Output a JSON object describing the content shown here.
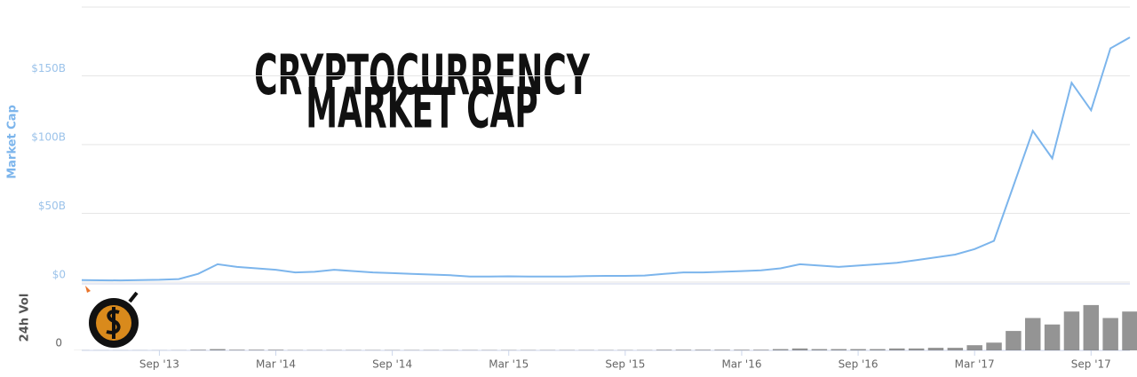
{
  "chart_data": {
    "type": "line",
    "title": [
      "CRYPTOCURRENCY",
      "MARKET CAP"
    ],
    "y_label": "Market Cap",
    "y2_label": "24h Vol",
    "x": [
      "2013-05",
      "2013-06",
      "2013-07",
      "2013-08",
      "2013-09",
      "2013-10",
      "2013-11",
      "2013-12",
      "2014-01",
      "2014-02",
      "2014-03",
      "2014-04",
      "2014-05",
      "2014-06",
      "2014-07",
      "2014-08",
      "2014-09",
      "2014-10",
      "2014-11",
      "2014-12",
      "2015-01",
      "2015-02",
      "2015-03",
      "2015-04",
      "2015-05",
      "2015-06",
      "2015-07",
      "2015-08",
      "2015-09",
      "2015-10",
      "2015-11",
      "2015-12",
      "2016-01",
      "2016-02",
      "2016-03",
      "2016-04",
      "2016-05",
      "2016-06",
      "2016-07",
      "2016-08",
      "2016-09",
      "2016-10",
      "2016-11",
      "2016-12",
      "2017-01",
      "2017-02",
      "2017-03",
      "2017-04",
      "2017-05",
      "2017-06",
      "2017-07",
      "2017-08",
      "2017-09",
      "2017-10",
      "2017-11"
    ],
    "series": [
      {
        "name": "Market Cap",
        "color": "#7cb5ec",
        "values": [
          1.5,
          1.3,
          1.2,
          1.5,
          1.7,
          2.2,
          6,
          13,
          11,
          10,
          9,
          7,
          7.5,
          9,
          8,
          7,
          6.5,
          6,
          5.5,
          5,
          4,
          4,
          4.2,
          4,
          4,
          4,
          4.3,
          4.5,
          4.5,
          4.8,
          6,
          7,
          7,
          7.5,
          8,
          8.5,
          10,
          13,
          12,
          11,
          12,
          13,
          14,
          16,
          18,
          20,
          24,
          30,
          70,
          110,
          90,
          145,
          125,
          170,
          178
        ]
      },
      {
        "name": "24h Vol",
        "color": "#666666",
        "axis": "y2",
        "values": [
          0.02,
          0.02,
          0.02,
          0.02,
          0.02,
          0.03,
          0.1,
          0.2,
          0.1,
          0.1,
          0.1,
          0.05,
          0.05,
          0.05,
          0.05,
          0.05,
          0.05,
          0.05,
          0.05,
          0.05,
          0.05,
          0.05,
          0.05,
          0.05,
          0.05,
          0.05,
          0.05,
          0.05,
          0.05,
          0.05,
          0.1,
          0.1,
          0.1,
          0.1,
          0.1,
          0.1,
          0.2,
          0.3,
          0.2,
          0.2,
          0.2,
          0.2,
          0.3,
          0.3,
          0.4,
          0.4,
          0.8,
          1.2,
          3,
          5,
          4,
          6,
          7,
          5,
          6
        ]
      }
    ],
    "xlim": [
      "2013-05",
      "2017-11"
    ],
    "xticks": [
      {
        "value": "2013-09",
        "label": "Sep '13"
      },
      {
        "value": "2014-03",
        "label": "Mar '14"
      },
      {
        "value": "2014-09",
        "label": "Sep '14"
      },
      {
        "value": "2015-03",
        "label": "Mar '15"
      },
      {
        "value": "2015-09",
        "label": "Sep '15"
      },
      {
        "value": "2016-03",
        "label": "Mar '16"
      },
      {
        "value": "2016-09",
        "label": "Sep '16"
      },
      {
        "value": "2017-03",
        "label": "Mar '17"
      },
      {
        "value": "2017-09",
        "label": "Sep '17"
      }
    ],
    "ylim": [
      0,
      200
    ],
    "yticks": [
      {
        "value": 0,
        "label": "$0"
      },
      {
        "value": 50,
        "label": "$50B"
      },
      {
        "value": 100,
        "label": "$100B"
      },
      {
        "value": 150,
        "label": "$150B"
      }
    ],
    "y2lim": [
      0,
      10
    ],
    "y2ticks": [
      0
    ],
    "grid": true
  }
}
